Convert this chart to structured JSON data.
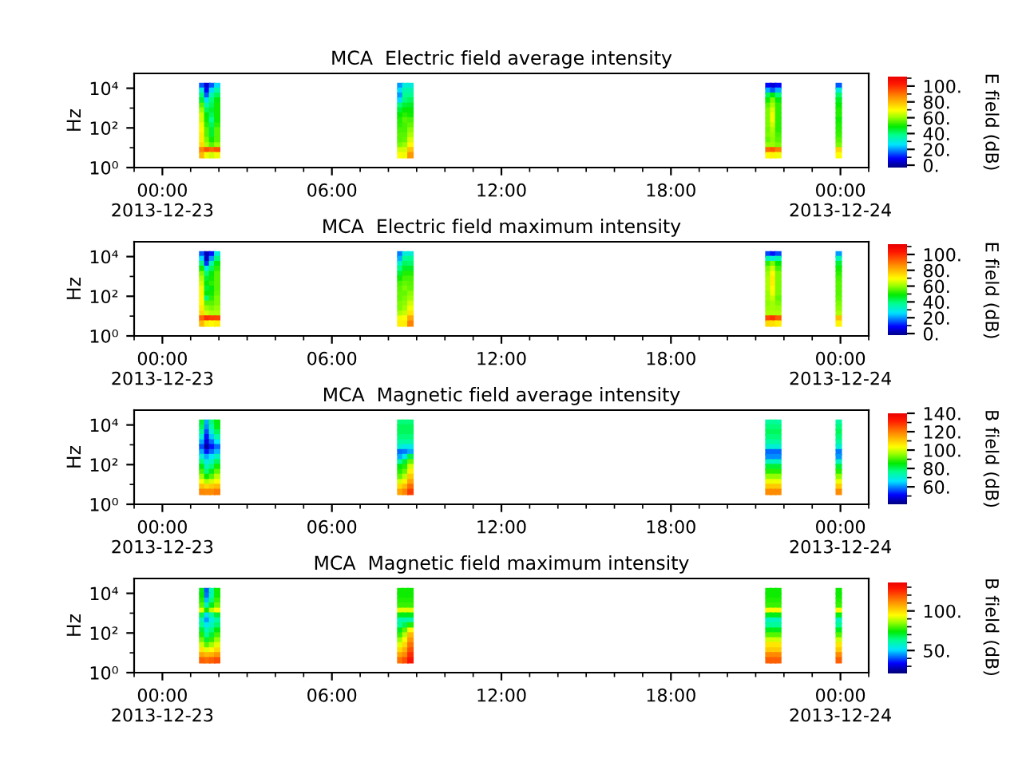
{
  "chart_data": [
    {
      "type": "scatter",
      "title": "MCA  Electric field average intensity",
      "ylabel": "Hz",
      "clabel": "E field (dB)",
      "log": "y",
      "marker": "square",
      "xlim": [
        -1,
        25
      ],
      "xticks": [
        {
          "value": -1,
          "label": null
        },
        {
          "value": 0,
          "label": "00:00\n2013-12-23"
        },
        {
          "value": 1,
          "label": null
        },
        {
          "value": 2,
          "label": null
        },
        {
          "value": 3,
          "label": null
        },
        {
          "value": 4,
          "label": null
        },
        {
          "value": 5,
          "label": null
        },
        {
          "value": 6,
          "label": "06:00"
        },
        {
          "value": 7,
          "label": null
        },
        {
          "value": 8,
          "label": null
        },
        {
          "value": 9,
          "label": null
        },
        {
          "value": 10,
          "label": null
        },
        {
          "value": 11,
          "label": null
        },
        {
          "value": 12,
          "label": "12:00"
        },
        {
          "value": 13,
          "label": null
        },
        {
          "value": 14,
          "label": null
        },
        {
          "value": 15,
          "label": null
        },
        {
          "value": 16,
          "label": null
        },
        {
          "value": 17,
          "label": null
        },
        {
          "value": 18,
          "label": "18:00"
        },
        {
          "value": 19,
          "label": null
        },
        {
          "value": 20,
          "label": null
        },
        {
          "value": 21,
          "label": null
        },
        {
          "value": 22,
          "label": null
        },
        {
          "value": 23,
          "label": null
        },
        {
          "value": 24,
          "label": "00:00\n2013-12-24"
        },
        {
          "value": 25,
          "label": null
        }
      ],
      "ylim": [
        1,
        56000
      ],
      "yticks": [
        {
          "value": 1,
          "label": "10⁰"
        },
        {
          "value": 10,
          "label": null
        },
        {
          "value": 100,
          "label": "10²"
        },
        {
          "value": 1000,
          "label": null
        },
        {
          "value": 10000,
          "label": "10⁴"
        }
      ],
      "clim": [
        -3,
        112
      ],
      "cticks": [
        {
          "value": 0,
          "label": "0."
        },
        {
          "value": 10,
          "label": null
        },
        {
          "value": 20,
          "label": "20."
        },
        {
          "value": 30,
          "label": null
        },
        {
          "value": 40,
          "label": "40."
        },
        {
          "value": 50,
          "label": null
        },
        {
          "value": 60,
          "label": "60."
        },
        {
          "value": 70,
          "label": null
        },
        {
          "value": 80,
          "label": "80."
        },
        {
          "value": 90,
          "label": null
        },
        {
          "value": 100,
          "label": "100."
        },
        {
          "value": 110,
          "label": null
        }
      ],
      "x": [
        1.41,
        1.59,
        1.76,
        1.94,
        8.42,
        8.6,
        8.78,
        21.45,
        21.62,
        21.8,
        23.94,
        1.41,
        1.59,
        1.76,
        1.94,
        8.42,
        8.6,
        8.78,
        21.45,
        21.62,
        21.8,
        23.94,
        1.41,
        1.59,
        1.76,
        1.94,
        8.42,
        8.6,
        8.78,
        21.45,
        21.62,
        21.8,
        23.94,
        1.41,
        1.59,
        1.76,
        1.94,
        8.42,
        8.6,
        8.78,
        21.45,
        21.62,
        21.8,
        23.94,
        1.41,
        1.59,
        1.76,
        1.94,
        8.42,
        8.6,
        8.78,
        21.45,
        21.62,
        21.8,
        23.94,
        1.41,
        1.59,
        1.76,
        1.94,
        8.42,
        8.6,
        8.78,
        21.45,
        21.62,
        21.8,
        23.94,
        1.41,
        1.59,
        1.76,
        1.94,
        8.42,
        8.6,
        8.78,
        21.45,
        21.62,
        21.8,
        23.94,
        1.41,
        1.59,
        1.76,
        1.94,
        8.42,
        8.6,
        8.78,
        21.45,
        21.62,
        21.8,
        23.94,
        1.41,
        1.59,
        1.76,
        1.94,
        8.42,
        8.6,
        8.78,
        21.45,
        21.62,
        21.8,
        23.94,
        1.41,
        1.59,
        1.76,
        1.94,
        8.42,
        8.6,
        8.78,
        21.45,
        21.62,
        21.8,
        23.94,
        1.41,
        1.59,
        1.76,
        1.94,
        8.42,
        8.6,
        8.78,
        21.45,
        21.62,
        21.8,
        23.94,
        1.41,
        1.59,
        1.76,
        1.94,
        8.42,
        8.6,
        8.78,
        21.45,
        21.62,
        21.8,
        23.94,
        1.41,
        1.59,
        1.76,
        1.94,
        8.42,
        8.6,
        8.78,
        21.45,
        21.62,
        21.8,
        23.94,
        1.41,
        1.59,
        1.76,
        1.94,
        8.42,
        8.6,
        8.78,
        21.45,
        21.62,
        21.8,
        23.94,
        1.41,
        1.59,
        1.76,
        1.94,
        8.42,
        8.6,
        8.78,
        21.45,
        21.62,
        21.8,
        23.94
      ],
      "values": [
        13000,
        13000,
        13000,
        13000,
        13000,
        13000,
        13000,
        13000,
        13000,
        13000,
        13000,
        7500,
        7500,
        7500,
        7500,
        7500,
        7500,
        7500,
        7500,
        7500,
        7500,
        7500,
        4200,
        4200,
        4200,
        4200,
        4200,
        4200,
        4200,
        4200,
        4200,
        4200,
        4200,
        2400,
        2400,
        2400,
        2400,
        2400,
        2400,
        2400,
        2400,
        2400,
        2400,
        2400,
        1300,
        1300,
        1300,
        1300,
        1300,
        1300,
        1300,
        1300,
        1300,
        1300,
        1300,
        750,
        750,
        750,
        750,
        750,
        750,
        750,
        750,
        750,
        750,
        750,
        420,
        420,
        420,
        420,
        420,
        420,
        420,
        420,
        420,
        420,
        420,
        240,
        240,
        240,
        240,
        240,
        240,
        240,
        240,
        240,
        240,
        240,
        130,
        130,
        130,
        130,
        130,
        130,
        130,
        130,
        130,
        130,
        130,
        75,
        75,
        75,
        75,
        75,
        75,
        75,
        75,
        75,
        75,
        75,
        42,
        42,
        42,
        42,
        42,
        42,
        42,
        42,
        42,
        42,
        42,
        24,
        24,
        24,
        24,
        24,
        24,
        24,
        24,
        24,
        24,
        24,
        13,
        13,
        13,
        13,
        13,
        13,
        13,
        13,
        13,
        13,
        13,
        7.5,
        7.5,
        7.5,
        7.5,
        7.5,
        7.5,
        7.5,
        7.5,
        7.5,
        7.5,
        7.5,
        4.2,
        4.2,
        4.2,
        4.2,
        4.2,
        4.2,
        4.2,
        4.2,
        4.2,
        4.2,
        4.2
      ],
      "cvalues": [
        15,
        5,
        15,
        25,
        20,
        30,
        30,
        9,
        5,
        9,
        15,
        30,
        8,
        25,
        35,
        25,
        35,
        35,
        22,
        15,
        22,
        30,
        40,
        15,
        35,
        42,
        20,
        38,
        38,
        42,
        48,
        40,
        41,
        45,
        25,
        40,
        48,
        25,
        40,
        42,
        50,
        58,
        48,
        46,
        55,
        35,
        42,
        50,
        40,
        45,
        46,
        55,
        62,
        52,
        49,
        60,
        42,
        45,
        50,
        45,
        49,
        49,
        58,
        66,
        52,
        51,
        65,
        48,
        42,
        50,
        49,
        52,
        50,
        58,
        68,
        52,
        51,
        65,
        50,
        38,
        50,
        51,
        55,
        54,
        58,
        68,
        52,
        50,
        68,
        52,
        42,
        52,
        52,
        54,
        56,
        58,
        65,
        52,
        51,
        70,
        55,
        45,
        55,
        54,
        54,
        59,
        57,
        62,
        52,
        52,
        72,
        55,
        45,
        55,
        55,
        55,
        62,
        58,
        60,
        54,
        53,
        72,
        58,
        50,
        55,
        55,
        56,
        66,
        56,
        59,
        55,
        55,
        75,
        62,
        55,
        60,
        58,
        60,
        70,
        60,
        60,
        58,
        58,
        88,
        95,
        92,
        95,
        65,
        65,
        78,
        91,
        94,
        89,
        76,
        80,
        68,
        65,
        68,
        69,
        68,
        85,
        70,
        71,
        68,
        69
      ]
    },
    {
      "type": "scatter",
      "title": "MCA  Electric field maximum intensity",
      "ylabel": "Hz",
      "clabel": "E field (dB)",
      "log": "y",
      "marker": "square",
      "xlim": [
        -1,
        25
      ],
      "xticks": [
        {
          "value": -1,
          "label": null
        },
        {
          "value": 0,
          "label": "00:00\n2013-12-23"
        },
        {
          "value": 1,
          "label": null
        },
        {
          "value": 2,
          "label": null
        },
        {
          "value": 3,
          "label": null
        },
        {
          "value": 4,
          "label": null
        },
        {
          "value": 5,
          "label": null
        },
        {
          "value": 6,
          "label": "06:00"
        },
        {
          "value": 7,
          "label": null
        },
        {
          "value": 8,
          "label": null
        },
        {
          "value": 9,
          "label": null
        },
        {
          "value": 10,
          "label": null
        },
        {
          "value": 11,
          "label": null
        },
        {
          "value": 12,
          "label": "12:00"
        },
        {
          "value": 13,
          "label": null
        },
        {
          "value": 14,
          "label": null
        },
        {
          "value": 15,
          "label": null
        },
        {
          "value": 16,
          "label": null
        },
        {
          "value": 17,
          "label": null
        },
        {
          "value": 18,
          "label": "18:00"
        },
        {
          "value": 19,
          "label": null
        },
        {
          "value": 20,
          "label": null
        },
        {
          "value": 21,
          "label": null
        },
        {
          "value": 22,
          "label": null
        },
        {
          "value": 23,
          "label": null
        },
        {
          "value": 24,
          "label": "00:00\n2013-12-24"
        },
        {
          "value": 25,
          "label": null
        }
      ],
      "ylim": [
        1,
        56000
      ],
      "yticks": [
        {
          "value": 1,
          "label": "10⁰"
        },
        {
          "value": 10,
          "label": null
        },
        {
          "value": 100,
          "label": "10²"
        },
        {
          "value": 1000,
          "label": null
        },
        {
          "value": 10000,
          "label": "10⁴"
        }
      ],
      "clim": [
        -3,
        112
      ],
      "cticks": [
        {
          "value": 0,
          "label": "0."
        },
        {
          "value": 10,
          "label": null
        },
        {
          "value": 20,
          "label": "20."
        },
        {
          "value": 30,
          "label": null
        },
        {
          "value": 40,
          "label": "40."
        },
        {
          "value": 50,
          "label": null
        },
        {
          "value": 60,
          "label": "60."
        },
        {
          "value": 70,
          "label": null
        },
        {
          "value": 80,
          "label": "80."
        },
        {
          "value": 90,
          "label": null
        },
        {
          "value": 100,
          "label": "100."
        },
        {
          "value": 110,
          "label": null
        }
      ],
      "x": [
        1.41,
        1.59,
        1.76,
        1.94,
        8.42,
        8.6,
        8.78,
        21.45,
        21.62,
        21.8,
        23.94,
        1.41,
        1.59,
        1.76,
        1.94,
        8.42,
        8.6,
        8.78,
        21.45,
        21.62,
        21.8,
        23.94,
        1.41,
        1.59,
        1.76,
        1.94,
        8.42,
        8.6,
        8.78,
        21.45,
        21.62,
        21.8,
        23.94,
        1.41,
        1.59,
        1.76,
        1.94,
        8.42,
        8.6,
        8.78,
        21.45,
        21.62,
        21.8,
        23.94,
        1.41,
        1.59,
        1.76,
        1.94,
        8.42,
        8.6,
        8.78,
        21.45,
        21.62,
        21.8,
        23.94,
        1.41,
        1.59,
        1.76,
        1.94,
        8.42,
        8.6,
        8.78,
        21.45,
        21.62,
        21.8,
        23.94,
        1.41,
        1.59,
        1.76,
        1.94,
        8.42,
        8.6,
        8.78,
        21.45,
        21.62,
        21.8,
        23.94,
        1.41,
        1.59,
        1.76,
        1.94,
        8.42,
        8.6,
        8.78,
        21.45,
        21.62,
        21.8,
        23.94,
        1.41,
        1.59,
        1.76,
        1.94,
        8.42,
        8.6,
        8.78,
        21.45,
        21.62,
        21.8,
        23.94,
        1.41,
        1.59,
        1.76,
        1.94,
        8.42,
        8.6,
        8.78,
        21.45,
        21.62,
        21.8,
        23.94,
        1.41,
        1.59,
        1.76,
        1.94,
        8.42,
        8.6,
        8.78,
        21.45,
        21.62,
        21.8,
        23.94,
        1.41,
        1.59,
        1.76,
        1.94,
        8.42,
        8.6,
        8.78,
        21.45,
        21.62,
        21.8,
        23.94,
        1.41,
        1.59,
        1.76,
        1.94,
        8.42,
        8.6,
        8.78,
        21.45,
        21.62,
        21.8,
        23.94,
        1.41,
        1.59,
        1.76,
        1.94,
        8.42,
        8.6,
        8.78,
        21.45,
        21.62,
        21.8,
        23.94,
        1.41,
        1.59,
        1.76,
        1.94,
        8.42,
        8.6,
        8.78,
        21.45,
        21.62,
        21.8,
        23.94
      ],
      "values": [
        13000,
        13000,
        13000,
        13000,
        13000,
        13000,
        13000,
        13000,
        13000,
        13000,
        13000,
        7500,
        7500,
        7500,
        7500,
        7500,
        7500,
        7500,
        7500,
        7500,
        7500,
        7500,
        4200,
        4200,
        4200,
        4200,
        4200,
        4200,
        4200,
        4200,
        4200,
        4200,
        4200,
        2400,
        2400,
        2400,
        2400,
        2400,
        2400,
        2400,
        2400,
        2400,
        2400,
        2400,
        1300,
        1300,
        1300,
        1300,
        1300,
        1300,
        1300,
        1300,
        1300,
        1300,
        1300,
        750,
        750,
        750,
        750,
        750,
        750,
        750,
        750,
        750,
        750,
        750,
        420,
        420,
        420,
        420,
        420,
        420,
        420,
        420,
        420,
        420,
        420,
        240,
        240,
        240,
        240,
        240,
        240,
        240,
        240,
        240,
        240,
        240,
        130,
        130,
        130,
        130,
        130,
        130,
        130,
        130,
        130,
        130,
        130,
        75,
        75,
        75,
        75,
        75,
        75,
        75,
        75,
        75,
        75,
        75,
        42,
        42,
        42,
        42,
        42,
        42,
        42,
        42,
        42,
        42,
        42,
        24,
        24,
        24,
        24,
        24,
        24,
        24,
        24,
        24,
        24,
        24,
        13,
        13,
        13,
        13,
        13,
        13,
        13,
        13,
        13,
        13,
        13,
        7.5,
        7.5,
        7.5,
        7.5,
        7.5,
        7.5,
        7.5,
        7.5,
        7.5,
        7.5,
        7.5,
        4.2,
        4.2,
        4.2,
        4.2,
        4.2,
        4.2,
        4.2,
        4.2,
        4.2,
        4.2,
        4.2
      ],
      "cvalues": [
        15,
        2,
        10,
        30,
        18,
        30,
        30,
        14,
        10,
        14,
        20,
        25,
        3,
        20,
        40,
        22,
        38,
        38,
        35,
        30,
        35,
        35,
        40,
        12,
        35,
        48,
        32,
        42,
        41,
        52,
        58,
        49,
        45,
        50,
        28,
        42,
        52,
        39,
        46,
        46,
        58,
        65,
        54,
        50,
        58,
        40,
        48,
        55,
        45,
        51,
        51,
        60,
        70,
        58,
        52,
        62,
        45,
        50,
        55,
        50,
        54,
        54,
        62,
        72,
        58,
        54,
        65,
        48,
        52,
        55,
        54,
        56,
        55,
        62,
        72,
        58,
        55,
        68,
        45,
        48,
        55,
        55,
        58,
        56,
        62,
        70,
        58,
        55,
        68,
        48,
        50,
        56,
        56,
        56,
        59,
        60,
        68,
        58,
        55,
        70,
        40,
        52,
        58,
        56,
        58,
        61,
        60,
        64,
        56,
        56,
        70,
        55,
        55,
        58,
        58,
        59,
        65,
        59,
        61,
        58,
        58,
        72,
        60,
        58,
        60,
        58,
        61,
        68,
        60,
        61,
        60,
        59,
        75,
        65,
        62,
        62,
        62,
        64,
        73,
        62,
        62,
        62,
        62,
        92,
        100,
        98,
        97,
        68,
        69,
        82,
        96,
        99,
        94,
        79,
        80,
        72,
        70,
        72,
        72,
        72,
        88,
        75,
        74,
        72,
        71
      ]
    },
    {
      "type": "scatter",
      "title": "MCA  Magnetic field average intensity",
      "ylabel": "Hz",
      "clabel": "B field (dB)",
      "log": "y",
      "marker": "square",
      "xlim": [
        -1,
        25
      ],
      "xticks": [
        {
          "value": -1,
          "label": null
        },
        {
          "value": 0,
          "label": "00:00\n2013-12-23"
        },
        {
          "value": 1,
          "label": null
        },
        {
          "value": 2,
          "label": null
        },
        {
          "value": 3,
          "label": null
        },
        {
          "value": 4,
          "label": null
        },
        {
          "value": 5,
          "label": null
        },
        {
          "value": 6,
          "label": "06:00"
        },
        {
          "value": 7,
          "label": null
        },
        {
          "value": 8,
          "label": null
        },
        {
          "value": 9,
          "label": null
        },
        {
          "value": 10,
          "label": null
        },
        {
          "value": 11,
          "label": null
        },
        {
          "value": 12,
          "label": "12:00"
        },
        {
          "value": 13,
          "label": null
        },
        {
          "value": 14,
          "label": null
        },
        {
          "value": 15,
          "label": null
        },
        {
          "value": 16,
          "label": null
        },
        {
          "value": 17,
          "label": null
        },
        {
          "value": 18,
          "label": "18:00"
        },
        {
          "value": 19,
          "label": null
        },
        {
          "value": 20,
          "label": null
        },
        {
          "value": 21,
          "label": null
        },
        {
          "value": 22,
          "label": null
        },
        {
          "value": 23,
          "label": null
        },
        {
          "value": 24,
          "label": "00:00\n2013-12-24"
        },
        {
          "value": 25,
          "label": null
        }
      ],
      "ylim": [
        1,
        56000
      ],
      "yticks": [
        {
          "value": 1,
          "label": "10⁰"
        },
        {
          "value": 10,
          "label": null
        },
        {
          "value": 100,
          "label": "10²"
        },
        {
          "value": 1000,
          "label": null
        },
        {
          "value": 10000,
          "label": "10⁴"
        }
      ],
      "clim": [
        41,
        140
      ],
      "cticks": [
        {
          "value": 50,
          "label": null
        },
        {
          "value": 60,
          "label": "60."
        },
        {
          "value": 70,
          "label": null
        },
        {
          "value": 80,
          "label": "80."
        },
        {
          "value": 90,
          "label": null
        },
        {
          "value": 100,
          "label": "100."
        },
        {
          "value": 110,
          "label": null
        },
        {
          "value": 120,
          "label": "120."
        },
        {
          "value": 130,
          "label": null
        },
        {
          "value": 140,
          "label": "140."
        }
      ],
      "x": [
        1.41,
        1.59,
        1.76,
        1.94,
        8.42,
        8.6,
        8.78,
        21.45,
        21.62,
        21.8,
        23.94,
        1.41,
        1.59,
        1.76,
        1.94,
        8.42,
        8.6,
        8.78,
        21.45,
        21.62,
        21.8,
        23.94,
        1.41,
        1.59,
        1.76,
        1.94,
        8.42,
        8.6,
        8.78,
        21.45,
        21.62,
        21.8,
        23.94,
        1.41,
        1.59,
        1.76,
        1.94,
        8.42,
        8.6,
        8.78,
        21.45,
        21.62,
        21.8,
        23.94,
        1.41,
        1.59,
        1.76,
        1.94,
        8.42,
        8.6,
        8.78,
        21.45,
        21.62,
        21.8,
        23.94,
        1.41,
        1.59,
        1.76,
        1.94,
        8.42,
        8.6,
        8.78,
        21.45,
        21.62,
        21.8,
        23.94,
        1.41,
        1.59,
        1.76,
        1.94,
        8.42,
        8.6,
        8.78,
        21.45,
        21.62,
        21.8,
        23.94,
        1.41,
        1.59,
        1.76,
        1.94,
        8.42,
        8.6,
        8.78,
        21.45,
        21.62,
        21.8,
        23.94,
        1.41,
        1.59,
        1.76,
        1.94,
        8.42,
        8.6,
        8.78,
        21.45,
        21.62,
        21.8,
        23.94,
        1.41,
        1.59,
        1.76,
        1.94,
        8.42,
        8.6,
        8.78,
        21.45,
        21.62,
        21.8,
        23.94,
        1.41,
        1.59,
        1.76,
        1.94,
        8.42,
        8.6,
        8.78,
        21.45,
        21.62,
        21.8,
        23.94,
        1.41,
        1.59,
        1.76,
        1.94,
        8.42,
        8.6,
        8.78,
        21.45,
        21.62,
        21.8,
        23.94,
        1.41,
        1.59,
        1.76,
        1.94,
        8.42,
        8.6,
        8.78,
        21.45,
        21.62,
        21.8,
        23.94,
        1.41,
        1.59,
        1.76,
        1.94,
        8.42,
        8.6,
        8.78,
        21.45,
        21.62,
        21.8,
        23.94,
        1.41,
        1.59,
        1.76,
        1.94,
        8.42,
        8.6,
        8.78,
        21.45,
        21.62,
        21.8,
        23.94
      ],
      "values": [
        13000,
        13000,
        13000,
        13000,
        13000,
        13000,
        13000,
        13000,
        13000,
        13000,
        13000,
        7500,
        7500,
        7500,
        7500,
        7500,
        7500,
        7500,
        7500,
        7500,
        7500,
        7500,
        4200,
        4200,
        4200,
        4200,
        4200,
        4200,
        4200,
        4200,
        4200,
        4200,
        4200,
        2400,
        2400,
        2400,
        2400,
        2400,
        2400,
        2400,
        2400,
        2400,
        2400,
        2400,
        1300,
        1300,
        1300,
        1300,
        1300,
        1300,
        1300,
        1300,
        1300,
        1300,
        1300,
        750,
        750,
        750,
        750,
        750,
        750,
        750,
        750,
        750,
        750,
        750,
        420,
        420,
        420,
        420,
        420,
        420,
        420,
        420,
        420,
        420,
        420,
        240,
        240,
        240,
        240,
        240,
        240,
        240,
        240,
        240,
        240,
        240,
        130,
        130,
        130,
        130,
        130,
        130,
        130,
        130,
        130,
        130,
        130,
        75,
        75,
        75,
        75,
        75,
        75,
        75,
        75,
        75,
        75,
        75,
        42,
        42,
        42,
        42,
        42,
        42,
        42,
        42,
        42,
        42,
        42,
        24,
        24,
        24,
        24,
        24,
        24,
        24,
        24,
        24,
        24,
        24,
        13,
        13,
        13,
        13,
        13,
        13,
        13,
        13,
        13,
        13,
        13,
        7.5,
        7.5,
        7.5,
        7.5,
        7.5,
        7.5,
        7.5,
        7.5,
        7.5,
        7.5,
        7.5,
        4.2,
        4.2,
        4.2,
        4.2,
        4.2,
        4.2,
        4.2,
        4.2,
        4.2,
        4.2,
        4.2
      ],
      "cvalues": [
        82,
        62,
        78,
        85,
        78,
        78,
        78,
        75,
        76,
        75,
        75,
        80,
        60,
        75,
        84,
        80,
        80,
        80,
        78,
        78,
        78,
        78,
        76,
        56,
        70,
        80,
        80,
        80,
        80,
        80,
        80,
        80,
        80,
        70,
        52,
        64,
        74,
        78,
        78,
        78,
        78,
        78,
        78,
        78,
        62,
        48,
        58,
        66,
        75,
        75,
        75,
        75,
        75,
        75,
        75,
        56,
        44,
        52,
        58,
        70,
        68,
        68,
        70,
        70,
        70,
        70,
        62,
        52,
        58,
        63,
        58,
        59,
        62,
        58,
        58,
        58,
        59,
        70,
        62,
        66,
        72,
        62,
        68,
        81,
        60,
        60,
        60,
        61,
        78,
        68,
        72,
        80,
        75,
        82,
        92,
        72,
        72,
        72,
        72,
        85,
        72,
        78,
        87,
        85,
        88,
        100,
        82,
        82,
        82,
        82,
        90,
        78,
        84,
        92,
        88,
        92,
        105,
        88,
        88,
        88,
        88,
        96,
        86,
        91,
        98,
        92,
        98,
        110,
        95,
        95,
        95,
        95,
        103,
        97,
        100,
        104,
        100,
        105,
        115,
        102,
        102,
        102,
        102,
        111,
        108,
        110,
        112,
        108,
        112,
        122,
        110,
        110,
        110,
        110,
        119,
        118,
        118,
        120,
        115,
        119,
        128,
        118,
        118,
        118,
        118
      ]
    },
    {
      "type": "scatter",
      "title": "MCA  Magnetic field maximum intensity",
      "ylabel": "Hz",
      "clabel": "B field (dB)",
      "log": "y",
      "marker": "square",
      "xlim": [
        -1,
        25
      ],
      "xticks": [
        {
          "value": -1,
          "label": null
        },
        {
          "value": 0,
          "label": "00:00\n2013-12-23"
        },
        {
          "value": 1,
          "label": null
        },
        {
          "value": 2,
          "label": null
        },
        {
          "value": 3,
          "label": null
        },
        {
          "value": 4,
          "label": null
        },
        {
          "value": 5,
          "label": null
        },
        {
          "value": 6,
          "label": "06:00"
        },
        {
          "value": 7,
          "label": null
        },
        {
          "value": 8,
          "label": null
        },
        {
          "value": 9,
          "label": null
        },
        {
          "value": 10,
          "label": null
        },
        {
          "value": 11,
          "label": null
        },
        {
          "value": 12,
          "label": "12:00"
        },
        {
          "value": 13,
          "label": null
        },
        {
          "value": 14,
          "label": null
        },
        {
          "value": 15,
          "label": null
        },
        {
          "value": 16,
          "label": null
        },
        {
          "value": 17,
          "label": null
        },
        {
          "value": 18,
          "label": "18:00"
        },
        {
          "value": 19,
          "label": null
        },
        {
          "value": 20,
          "label": null
        },
        {
          "value": 21,
          "label": null
        },
        {
          "value": 22,
          "label": null
        },
        {
          "value": 23,
          "label": null
        },
        {
          "value": 24,
          "label": "00:00\n2013-12-24"
        },
        {
          "value": 25,
          "label": null
        }
      ],
      "ylim": [
        1,
        56000
      ],
      "yticks": [
        {
          "value": 1,
          "label": "10⁰"
        },
        {
          "value": 10,
          "label": null
        },
        {
          "value": 100,
          "label": "10²"
        },
        {
          "value": 1000,
          "label": null
        },
        {
          "value": 10000,
          "label": "10⁴"
        }
      ],
      "clim": [
        22,
        137
      ],
      "cticks": [
        {
          "value": 30,
          "label": null
        },
        {
          "value": 40,
          "label": null
        },
        {
          "value": 50,
          "label": "50."
        },
        {
          "value": 60,
          "label": null
        },
        {
          "value": 70,
          "label": null
        },
        {
          "value": 80,
          "label": null
        },
        {
          "value": 90,
          "label": null
        },
        {
          "value": 100,
          "label": "100."
        },
        {
          "value": 110,
          "label": null
        },
        {
          "value": 120,
          "label": null
        },
        {
          "value": 130,
          "label": null
        }
      ],
      "x": [
        1.41,
        1.59,
        1.76,
        1.94,
        8.42,
        8.6,
        8.78,
        21.45,
        21.62,
        21.8,
        23.94,
        1.41,
        1.59,
        1.76,
        1.94,
        8.42,
        8.6,
        8.78,
        21.45,
        21.62,
        21.8,
        23.94,
        1.41,
        1.59,
        1.76,
        1.94,
        8.42,
        8.6,
        8.78,
        21.45,
        21.62,
        21.8,
        23.94,
        1.41,
        1.59,
        1.76,
        1.94,
        8.42,
        8.6,
        8.78,
        21.45,
        21.62,
        21.8,
        23.94,
        1.41,
        1.59,
        1.76,
        1.94,
        8.42,
        8.6,
        8.78,
        21.45,
        21.62,
        21.8,
        23.94,
        1.41,
        1.59,
        1.76,
        1.94,
        8.42,
        8.6,
        8.78,
        21.45,
        21.62,
        21.8,
        23.94,
        1.41,
        1.59,
        1.76,
        1.94,
        8.42,
        8.6,
        8.78,
        21.45,
        21.62,
        21.8,
        23.94,
        1.41,
        1.59,
        1.76,
        1.94,
        8.42,
        8.6,
        8.78,
        21.45,
        21.62,
        21.8,
        23.94,
        1.41,
        1.59,
        1.76,
        1.94,
        8.42,
        8.6,
        8.78,
        21.45,
        21.62,
        21.8,
        23.94,
        1.41,
        1.59,
        1.76,
        1.94,
        8.42,
        8.6,
        8.78,
        21.45,
        21.62,
        21.8,
        23.94,
        1.41,
        1.59,
        1.76,
        1.94,
        8.42,
        8.6,
        8.78,
        21.45,
        21.62,
        21.8,
        23.94,
        1.41,
        1.59,
        1.76,
        1.94,
        8.42,
        8.6,
        8.78,
        21.45,
        21.62,
        21.8,
        23.94,
        1.41,
        1.59,
        1.76,
        1.94,
        8.42,
        8.6,
        8.78,
        21.45,
        21.62,
        21.8,
        23.94,
        1.41,
        1.59,
        1.76,
        1.94,
        8.42,
        8.6,
        8.78,
        21.45,
        21.62,
        21.8,
        23.94,
        1.41,
        1.59,
        1.76,
        1.94,
        8.42,
        8.6,
        8.78,
        21.45,
        21.62,
        21.8,
        23.94
      ],
      "values": [
        13000,
        13000,
        13000,
        13000,
        13000,
        13000,
        13000,
        13000,
        13000,
        13000,
        13000,
        7500,
        7500,
        7500,
        7500,
        7500,
        7500,
        7500,
        7500,
        7500,
        7500,
        7500,
        4200,
        4200,
        4200,
        4200,
        4200,
        4200,
        4200,
        4200,
        4200,
        4200,
        4200,
        2400,
        2400,
        2400,
        2400,
        2400,
        2400,
        2400,
        2400,
        2400,
        2400,
        2400,
        1300,
        1300,
        1300,
        1300,
        1300,
        1300,
        1300,
        1300,
        1300,
        1300,
        1300,
        750,
        750,
        750,
        750,
        750,
        750,
        750,
        750,
        750,
        750,
        750,
        420,
        420,
        420,
        420,
        420,
        420,
        420,
        420,
        420,
        420,
        420,
        240,
        240,
        240,
        240,
        240,
        240,
        240,
        240,
        240,
        240,
        240,
        130,
        130,
        130,
        130,
        130,
        130,
        130,
        130,
        130,
        130,
        130,
        75,
        75,
        75,
        75,
        75,
        75,
        75,
        75,
        75,
        75,
        75,
        42,
        42,
        42,
        42,
        42,
        42,
        42,
        42,
        42,
        42,
        42,
        24,
        24,
        24,
        24,
        24,
        24,
        24,
        24,
        24,
        24,
        24,
        13,
        13,
        13,
        13,
        13,
        13,
        13,
        13,
        13,
        13,
        13,
        7.5,
        7.5,
        7.5,
        7.5,
        7.5,
        7.5,
        7.5,
        7.5,
        7.5,
        7.5,
        7.5,
        4.2,
        4.2,
        4.2,
        4.2,
        4.2,
        4.2,
        4.2,
        4.2,
        4.2,
        4.2,
        4.2
      ],
      "cvalues": [
        72,
        40,
        60,
        75,
        75,
        75,
        75,
        75,
        75,
        75,
        75,
        74,
        42,
        60,
        75,
        75,
        75,
        75,
        75,
        75,
        75,
        75,
        76,
        48,
        65,
        78,
        76,
        76,
        76,
        76,
        76,
        76,
        76,
        80,
        58,
        72,
        82,
        78,
        78,
        78,
        78,
        78,
        78,
        78,
        92,
        75,
        88,
        95,
        92,
        92,
        92,
        95,
        95,
        95,
        95,
        68,
        50,
        62,
        70,
        72,
        72,
        72,
        72,
        72,
        72,
        72,
        58,
        45,
        54,
        61,
        60,
        60,
        60,
        58,
        58,
        58,
        58,
        63,
        52,
        58,
        66,
        62,
        68,
        76,
        62,
        62,
        62,
        62,
        70,
        58,
        65,
        73,
        72,
        80,
        95,
        72,
        72,
        72,
        72,
        76,
        62,
        70,
        79,
        78,
        88,
        105,
        80,
        80,
        80,
        80,
        82,
        70,
        77,
        85,
        85,
        95,
        110,
        90,
        90,
        90,
        90,
        90,
        80,
        86,
        92,
        92,
        100,
        115,
        98,
        98,
        98,
        98,
        98,
        92,
        95,
        100,
        100,
        106,
        120,
        102,
        102,
        102,
        102,
        108,
        105,
        106,
        110,
        108,
        112,
        125,
        112,
        112,
        112,
        112,
        118,
        116,
        118,
        120,
        115,
        120,
        130,
        118,
        118,
        118,
        118
      ]
    }
  ]
}
